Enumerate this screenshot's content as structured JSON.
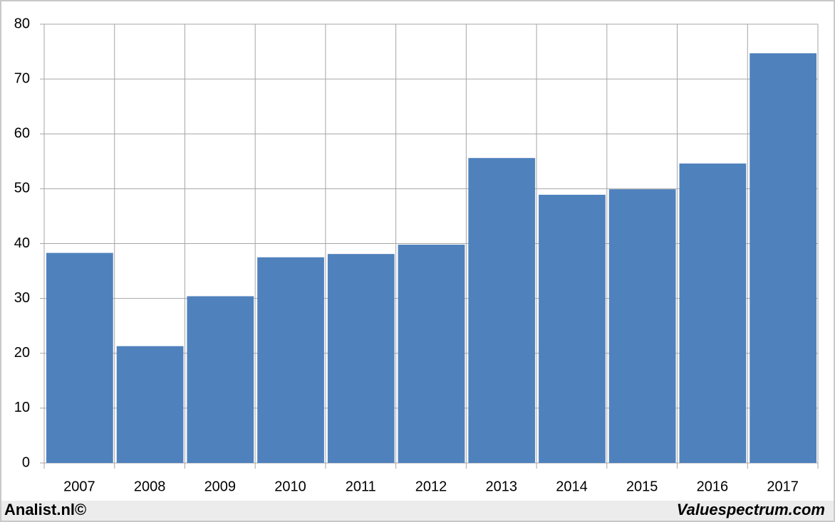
{
  "chart_data": {
    "type": "bar",
    "categories": [
      "2007",
      "2008",
      "2009",
      "2010",
      "2011",
      "2012",
      "2013",
      "2014",
      "2015",
      "2016",
      "2017"
    ],
    "values": [
      38.3,
      21.3,
      30.4,
      37.5,
      38.1,
      39.8,
      55.6,
      48.9,
      49.9,
      54.6,
      74.7
    ],
    "color": "#4f81bd",
    "ylim": [
      0,
      80
    ],
    "yticks": [
      0,
      10,
      20,
      30,
      40,
      50,
      60,
      70,
      80
    ],
    "grid": true
  },
  "footer": {
    "left": "Analist.nl©",
    "right": "Valuespectrum.com"
  }
}
